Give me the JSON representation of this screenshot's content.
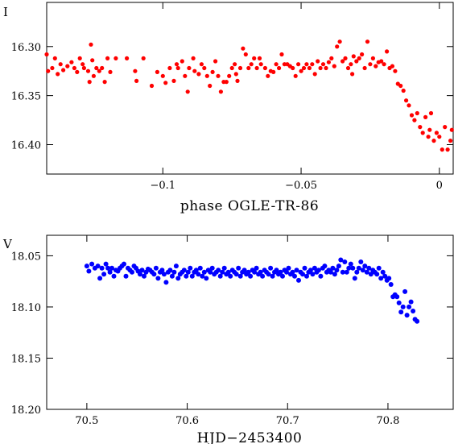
{
  "chart_data": [
    {
      "type": "scatter",
      "panel": "top",
      "ylabel": "I",
      "xlabel": "phase OGLE-TR-86",
      "xlim": [
        -0.142,
        0.005
      ],
      "ylim": [
        16.43,
        16.255
      ],
      "y_inverted": true,
      "color": "#ff0000",
      "x_ticks": [
        -0.1,
        -0.05,
        0
      ],
      "x_tick_labels": [
        "−0.1",
        "−0.05",
        "0"
      ],
      "y_ticks": [
        16.3,
        16.35,
        16.4
      ],
      "y_tick_labels": [
        "16.30",
        "16.35",
        "16.40"
      ],
      "points": [
        [
          -0.142,
          16.308
        ],
        [
          -0.1415,
          16.325
        ],
        [
          -0.14,
          16.322
        ],
        [
          -0.139,
          16.312
        ],
        [
          -0.138,
          16.328
        ],
        [
          -0.137,
          16.318
        ],
        [
          -0.136,
          16.324
        ],
        [
          -0.1345,
          16.32
        ],
        [
          -0.133,
          16.316
        ],
        [
          -0.132,
          16.322
        ],
        [
          -0.131,
          16.326
        ],
        [
          -0.13,
          16.312
        ],
        [
          -0.129,
          16.318
        ],
        [
          -0.1285,
          16.322
        ],
        [
          -0.127,
          16.325
        ],
        [
          -0.1265,
          16.336
        ],
        [
          -0.126,
          16.298
        ],
        [
          -0.1255,
          16.314
        ],
        [
          -0.125,
          16.33
        ],
        [
          -0.124,
          16.322
        ],
        [
          -0.123,
          16.325
        ],
        [
          -0.122,
          16.322
        ],
        [
          -0.121,
          16.336
        ],
        [
          -0.12,
          16.312
        ],
        [
          -0.119,
          16.326
        ],
        [
          -0.117,
          16.312
        ],
        [
          -0.113,
          16.312
        ],
        [
          -0.11,
          16.325
        ],
        [
          -0.1095,
          16.335
        ],
        [
          -0.107,
          16.312
        ],
        [
          -0.104,
          16.34
        ],
        [
          -0.102,
          16.326
        ],
        [
          -0.1,
          16.33
        ],
        [
          -0.099,
          16.337
        ],
        [
          -0.0975,
          16.322
        ],
        [
          -0.096,
          16.335
        ],
        [
          -0.095,
          16.318
        ],
        [
          -0.0945,
          16.322
        ],
        [
          -0.093,
          16.315
        ],
        [
          -0.092,
          16.33
        ],
        [
          -0.091,
          16.346
        ],
        [
          -0.0905,
          16.322
        ],
        [
          -0.089,
          16.312
        ],
        [
          -0.0885,
          16.325
        ],
        [
          -0.087,
          16.328
        ],
        [
          -0.086,
          16.318
        ],
        [
          -0.085,
          16.322
        ],
        [
          -0.084,
          16.33
        ],
        [
          -0.083,
          16.34
        ],
        [
          -0.082,
          16.326
        ],
        [
          -0.081,
          16.315
        ],
        [
          -0.08,
          16.33
        ],
        [
          -0.079,
          16.346
        ],
        [
          -0.078,
          16.336
        ],
        [
          -0.077,
          16.336
        ],
        [
          -0.076,
          16.33
        ],
        [
          -0.075,
          16.322
        ],
        [
          -0.074,
          16.318
        ],
        [
          -0.0735,
          16.328
        ],
        [
          -0.073,
          16.335
        ],
        [
          -0.072,
          16.322
        ],
        [
          -0.071,
          16.302
        ],
        [
          -0.07,
          16.308
        ],
        [
          -0.069,
          16.322
        ],
        [
          -0.068,
          16.318
        ],
        [
          -0.067,
          16.312
        ],
        [
          -0.066,
          16.322
        ],
        [
          -0.065,
          16.312
        ],
        [
          -0.0645,
          16.318
        ],
        [
          -0.063,
          16.322
        ],
        [
          -0.062,
          16.33
        ],
        [
          -0.061,
          16.325
        ],
        [
          -0.06,
          16.326
        ],
        [
          -0.059,
          16.318
        ],
        [
          -0.058,
          16.322
        ],
        [
          -0.057,
          16.308
        ],
        [
          -0.056,
          16.318
        ],
        [
          -0.055,
          16.318
        ],
        [
          -0.054,
          16.32
        ],
        [
          -0.053,
          16.322
        ],
        [
          -0.052,
          16.33
        ],
        [
          -0.051,
          16.318
        ],
        [
          -0.05,
          16.325
        ],
        [
          -0.049,
          16.322
        ],
        [
          -0.048,
          16.318
        ],
        [
          -0.047,
          16.322
        ],
        [
          -0.046,
          16.318
        ],
        [
          -0.045,
          16.328
        ],
        [
          -0.044,
          16.315
        ],
        [
          -0.043,
          16.322
        ],
        [
          -0.042,
          16.318
        ],
        [
          -0.041,
          16.322
        ],
        [
          -0.04,
          16.316
        ],
        [
          -0.039,
          16.312
        ],
        [
          -0.038,
          16.32
        ],
        [
          -0.037,
          16.3
        ],
        [
          -0.036,
          16.295
        ],
        [
          -0.035,
          16.315
        ],
        [
          -0.034,
          16.312
        ],
        [
          -0.033,
          16.322
        ],
        [
          -0.032,
          16.318
        ],
        [
          -0.0315,
          16.328
        ],
        [
          -0.031,
          16.31
        ],
        [
          -0.03,
          16.315
        ],
        [
          -0.029,
          16.312
        ],
        [
          -0.028,
          16.308
        ],
        [
          -0.027,
          16.322
        ],
        [
          -0.026,
          16.295
        ],
        [
          -0.025,
          16.318
        ],
        [
          -0.024,
          16.312
        ],
        [
          -0.023,
          16.32
        ],
        [
          -0.022,
          16.316
        ],
        [
          -0.021,
          16.315
        ],
        [
          -0.02,
          16.318
        ],
        [
          -0.019,
          16.305
        ],
        [
          -0.018,
          16.322
        ],
        [
          -0.017,
          16.32
        ],
        [
          -0.016,
          16.325
        ],
        [
          -0.015,
          16.338
        ],
        [
          -0.014,
          16.34
        ],
        [
          -0.013,
          16.345
        ],
        [
          -0.012,
          16.355
        ],
        [
          -0.011,
          16.36
        ],
        [
          -0.01,
          16.37
        ],
        [
          -0.009,
          16.375
        ],
        [
          -0.008,
          16.368
        ],
        [
          -0.007,
          16.382
        ],
        [
          -0.006,
          16.388
        ],
        [
          -0.005,
          16.372
        ],
        [
          -0.004,
          16.392
        ],
        [
          -0.0035,
          16.385
        ],
        [
          -0.003,
          16.368
        ],
        [
          -0.002,
          16.396
        ],
        [
          -0.001,
          16.388
        ],
        [
          0.0,
          16.392
        ],
        [
          0.001,
          16.405
        ],
        [
          0.002,
          16.382
        ],
        [
          0.003,
          16.405
        ],
        [
          0.004,
          16.396
        ],
        [
          0.0045,
          16.385
        ]
      ]
    },
    {
      "type": "scatter",
      "panel": "bottom",
      "ylabel": "V",
      "xlabel": "HJD−2453400",
      "xlim": [
        70.46,
        70.865
      ],
      "ylim": [
        18.2,
        18.03
      ],
      "y_inverted": true,
      "color": "#0000ff",
      "x_ticks": [
        70.5,
        70.6,
        70.7,
        70.8
      ],
      "x_tick_labels": [
        "70.5",
        "70.6",
        "70.7",
        "70.8"
      ],
      "y_ticks": [
        18.05,
        18.1,
        18.15,
        18.2
      ],
      "y_tick_labels": [
        "18.05",
        "18.10",
        "18.15",
        "18.20"
      ],
      "points": [
        [
          70.5,
          18.06
        ],
        [
          70.502,
          18.065
        ],
        [
          70.505,
          18.058
        ],
        [
          70.508,
          18.062
        ],
        [
          70.511,
          18.06
        ],
        [
          70.513,
          18.072
        ],
        [
          70.515,
          18.062
        ],
        [
          70.517,
          18.068
        ],
        [
          70.519,
          18.058
        ],
        [
          70.521,
          18.062
        ],
        [
          70.523,
          18.066
        ],
        [
          70.525,
          18.062
        ],
        [
          70.527,
          18.07
        ],
        [
          70.529,
          18.064
        ],
        [
          70.531,
          18.065
        ],
        [
          70.533,
          18.062
        ],
        [
          70.535,
          18.06
        ],
        [
          70.537,
          18.058
        ],
        [
          70.539,
          18.07
        ],
        [
          70.541,
          18.062
        ],
        [
          70.543,
          18.064
        ],
        [
          70.545,
          18.066
        ],
        [
          70.547,
          18.06
        ],
        [
          70.549,
          18.062
        ],
        [
          70.551,
          18.065
        ],
        [
          70.553,
          18.068
        ],
        [
          70.555,
          18.064
        ],
        [
          70.557,
          18.07
        ],
        [
          70.559,
          18.066
        ],
        [
          70.561,
          18.063
        ],
        [
          70.563,
          18.064
        ],
        [
          70.565,
          18.066
        ],
        [
          70.567,
          18.068
        ],
        [
          70.569,
          18.062
        ],
        [
          70.571,
          18.072
        ],
        [
          70.573,
          18.066
        ],
        [
          70.575,
          18.064
        ],
        [
          70.577,
          18.068
        ],
        [
          70.579,
          18.076
        ],
        [
          70.581,
          18.066
        ],
        [
          70.583,
          18.064
        ],
        [
          70.585,
          18.07
        ],
        [
          70.587,
          18.066
        ],
        [
          70.589,
          18.06
        ],
        [
          70.591,
          18.072
        ],
        [
          70.593,
          18.068
        ],
        [
          70.595,
          18.066
        ],
        [
          70.597,
          18.064
        ],
        [
          70.599,
          18.07
        ],
        [
          70.601,
          18.066
        ],
        [
          70.603,
          18.062
        ],
        [
          70.605,
          18.07
        ],
        [
          70.607,
          18.066
        ],
        [
          70.609,
          18.064
        ],
        [
          70.611,
          18.068
        ],
        [
          70.613,
          18.062
        ],
        [
          70.615,
          18.07
        ],
        [
          70.617,
          18.066
        ],
        [
          70.619,
          18.072
        ],
        [
          70.621,
          18.064
        ],
        [
          70.623,
          18.066
        ],
        [
          70.625,
          18.062
        ],
        [
          70.627,
          18.068
        ],
        [
          70.629,
          18.066
        ],
        [
          70.631,
          18.064
        ],
        [
          70.633,
          18.07
        ],
        [
          70.635,
          18.066
        ],
        [
          70.637,
          18.062
        ],
        [
          70.639,
          18.068
        ],
        [
          70.641,
          18.066
        ],
        [
          70.643,
          18.07
        ],
        [
          70.645,
          18.064
        ],
        [
          70.647,
          18.066
        ],
        [
          70.649,
          18.068
        ],
        [
          70.651,
          18.062
        ],
        [
          70.653,
          18.07
        ],
        [
          70.655,
          18.066
        ],
        [
          70.657,
          18.064
        ],
        [
          70.659,
          18.068
        ],
        [
          70.661,
          18.066
        ],
        [
          70.663,
          18.07
        ],
        [
          70.665,
          18.064
        ],
        [
          70.667,
          18.066
        ],
        [
          70.669,
          18.062
        ],
        [
          70.671,
          18.068
        ],
        [
          70.673,
          18.066
        ],
        [
          70.675,
          18.07
        ],
        [
          70.677,
          18.064
        ],
        [
          70.679,
          18.066
        ],
        [
          70.681,
          18.068
        ],
        [
          70.683,
          18.062
        ],
        [
          70.685,
          18.07
        ],
        [
          70.687,
          18.066
        ],
        [
          70.689,
          18.064
        ],
        [
          70.691,
          18.068
        ],
        [
          70.693,
          18.066
        ],
        [
          70.695,
          18.07
        ],
        [
          70.697,
          18.064
        ],
        [
          70.699,
          18.066
        ],
        [
          70.701,
          18.062
        ],
        [
          70.703,
          18.068
        ],
        [
          70.705,
          18.066
        ],
        [
          70.707,
          18.07
        ],
        [
          70.709,
          18.064
        ],
        [
          70.711,
          18.074
        ],
        [
          70.713,
          18.066
        ],
        [
          70.715,
          18.068
        ],
        [
          70.717,
          18.062
        ],
        [
          70.719,
          18.07
        ],
        [
          70.721,
          18.066
        ],
        [
          70.723,
          18.064
        ],
        [
          70.725,
          18.068
        ],
        [
          70.727,
          18.062
        ],
        [
          70.729,
          18.066
        ],
        [
          70.731,
          18.064
        ],
        [
          70.733,
          18.07
        ],
        [
          70.735,
          18.062
        ],
        [
          70.737,
          18.06
        ],
        [
          70.739,
          18.066
        ],
        [
          70.741,
          18.064
        ],
        [
          70.743,
          18.066
        ],
        [
          70.745,
          18.062
        ],
        [
          70.747,
          18.068
        ],
        [
          70.749,
          18.064
        ],
        [
          70.751,
          18.06
        ],
        [
          70.753,
          18.054
        ],
        [
          70.755,
          18.066
        ],
        [
          70.757,
          18.056
        ],
        [
          70.759,
          18.066
        ],
        [
          70.761,
          18.062
        ],
        [
          70.763,
          18.058
        ],
        [
          70.765,
          18.062
        ],
        [
          70.767,
          18.072
        ],
        [
          70.769,
          18.066
        ],
        [
          70.771,
          18.062
        ],
        [
          70.773,
          18.056
        ],
        [
          70.775,
          18.064
        ],
        [
          70.777,
          18.06
        ],
        [
          70.779,
          18.066
        ],
        [
          70.781,
          18.062
        ],
        [
          70.783,
          18.068
        ],
        [
          70.785,
          18.064
        ],
        [
          70.787,
          18.066
        ],
        [
          70.789,
          18.068
        ],
        [
          70.791,
          18.062
        ],
        [
          70.793,
          18.072
        ],
        [
          70.795,
          18.066
        ],
        [
          70.797,
          18.07
        ],
        [
          70.799,
          18.074
        ],
        [
          70.801,
          18.072
        ],
        [
          70.803,
          18.078
        ],
        [
          70.805,
          18.09
        ],
        [
          70.807,
          18.088
        ],
        [
          70.809,
          18.09
        ],
        [
          70.811,
          18.096
        ],
        [
          70.813,
          18.105
        ],
        [
          70.815,
          18.1
        ],
        [
          70.817,
          18.085
        ],
        [
          70.819,
          18.108
        ],
        [
          70.821,
          18.1
        ],
        [
          70.823,
          18.095
        ],
        [
          70.825,
          18.104
        ],
        [
          70.827,
          18.112
        ],
        [
          70.829,
          18.114
        ]
      ]
    }
  ]
}
